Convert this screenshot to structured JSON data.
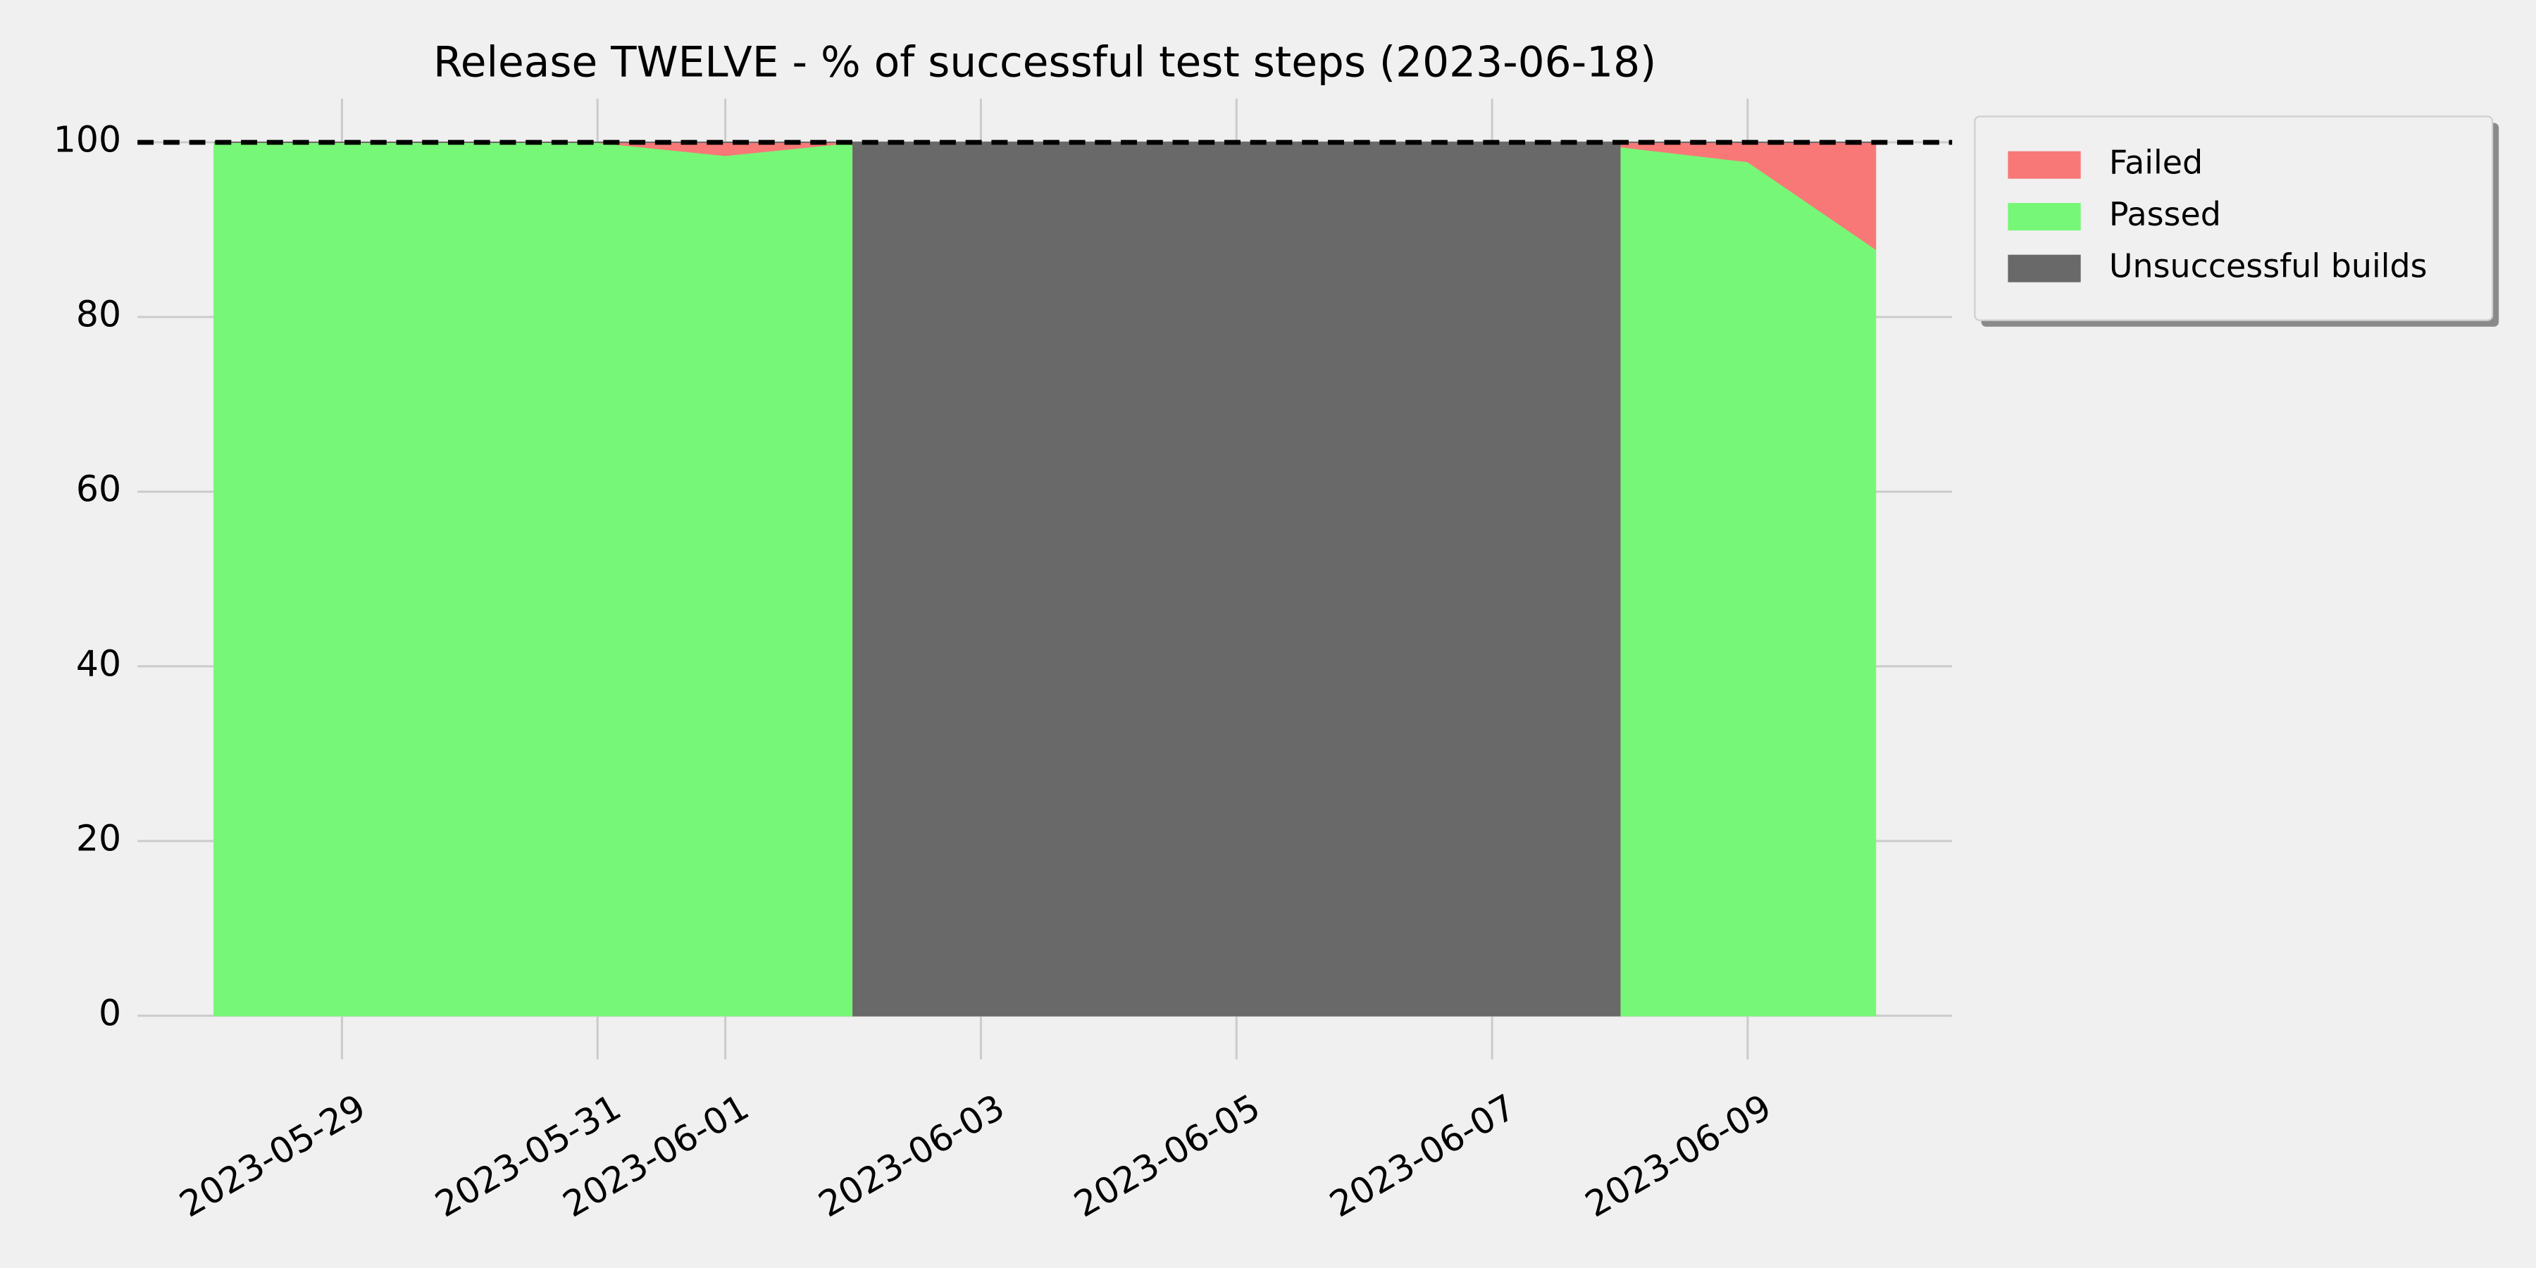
{
  "chart_data": {
    "type": "stacked_area",
    "title": "Release TWELVE - % of successful test steps (2023-06-18)",
    "x": [
      "2023-05-28",
      "2023-05-29",
      "2023-05-30",
      "2023-05-31",
      "2023-06-01",
      "2023-06-02",
      "2023-06-02",
      "2023-06-08",
      "2023-06-08",
      "2023-06-09",
      "2023-06-10"
    ],
    "series": [
      {
        "name": "Failed",
        "color": "#f87878",
        "values": [
          0,
          0,
          0,
          0,
          1.5,
          0,
          0,
          0,
          0.5,
          2.2,
          12.2
        ]
      },
      {
        "name": "Passed",
        "color": "#77f777",
        "values": [
          100,
          100,
          100,
          100,
          98.5,
          100,
          0,
          0,
          99.5,
          97.8,
          87.8
        ]
      },
      {
        "name": "Unsuccessful builds",
        "color": "#696969",
        "values": [
          0,
          0,
          0,
          0,
          0,
          0,
          100,
          100,
          0,
          0,
          0
        ]
      }
    ],
    "reference_line": 100,
    "xlim": [
      "2023-05-27T09:36",
      "2023-06-10T14:24"
    ],
    "xticks": [
      "2023-05-29",
      "2023-05-31",
      "2023-06-01",
      "2023-06-03",
      "2023-06-05",
      "2023-06-07",
      "2023-06-09"
    ],
    "ylim": [
      -5,
      105
    ],
    "yticks": [
      0,
      20,
      40,
      60,
      80,
      100
    ],
    "grid": true,
    "legend": "outside-upper-right"
  }
}
